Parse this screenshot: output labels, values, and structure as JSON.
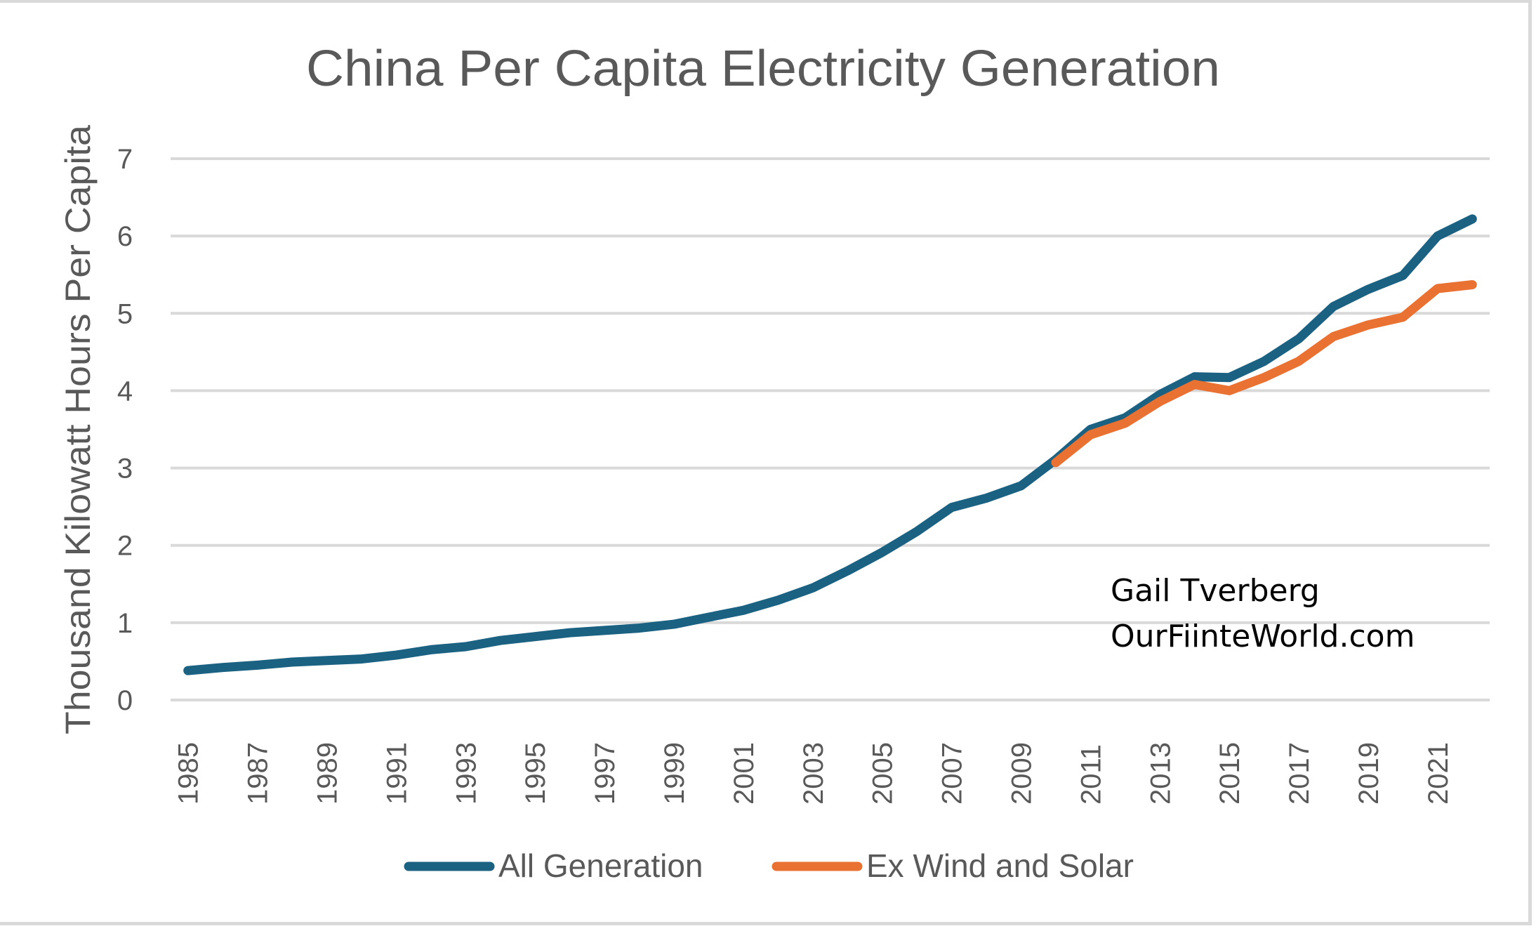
{
  "chart_data": {
    "type": "line",
    "title": "China Per Capita Electricity Generation",
    "xlabel": "",
    "ylabel": "Thousand Kilowatt Hours Per Capita",
    "ylim": [
      0,
      7
    ],
    "yticks": [
      "0",
      "1",
      "2",
      "3",
      "4",
      "5",
      "6",
      "7"
    ],
    "grid": true,
    "legend_position": "bottom",
    "categories": [
      "1985",
      "1986",
      "1987",
      "1988",
      "1989",
      "1990",
      "1991",
      "1992",
      "1993",
      "1994",
      "1995",
      "1996",
      "1997",
      "1998",
      "1999",
      "2000",
      "2001",
      "2002",
      "2003",
      "2004",
      "2005",
      "2006",
      "2007",
      "2008",
      "2009",
      "2010",
      "2011",
      "2012",
      "2013",
      "2014",
      "2015",
      "2016",
      "2017",
      "2018",
      "2019",
      "2020",
      "2021",
      "2022"
    ],
    "xtick_labels": [
      "1985",
      "1987",
      "1989",
      "1991",
      "1993",
      "1995",
      "1997",
      "1999",
      "2001",
      "2003",
      "2005",
      "2007",
      "2009",
      "2011",
      "2013",
      "2015",
      "2017",
      "2019",
      "2021"
    ],
    "series": [
      {
        "name": "All Generation",
        "color": "#1a6182",
        "values": [
          0.38,
          0.42,
          0.45,
          0.49,
          0.51,
          0.53,
          0.58,
          0.65,
          0.69,
          0.77,
          0.82,
          0.87,
          0.9,
          0.93,
          0.98,
          1.07,
          1.16,
          1.29,
          1.45,
          1.67,
          1.91,
          2.18,
          2.49,
          2.61,
          2.77,
          3.11,
          3.5,
          3.65,
          3.95,
          4.18,
          4.17,
          4.38,
          4.67,
          5.09,
          5.31,
          5.49,
          6.0,
          6.22
        ]
      },
      {
        "name": "Ex Wind and Solar",
        "color": "#e97132",
        "values": [
          null,
          null,
          null,
          null,
          null,
          null,
          null,
          null,
          null,
          null,
          null,
          null,
          null,
          null,
          null,
          null,
          null,
          null,
          null,
          null,
          null,
          null,
          null,
          null,
          null,
          3.07,
          3.43,
          3.58,
          3.86,
          4.08,
          4.0,
          4.17,
          4.38,
          4.7,
          4.85,
          4.95,
          5.32,
          5.37
        ]
      }
    ],
    "annotations": [
      "Gail Tverberg",
      "OurFiinteWorld.com"
    ]
  }
}
